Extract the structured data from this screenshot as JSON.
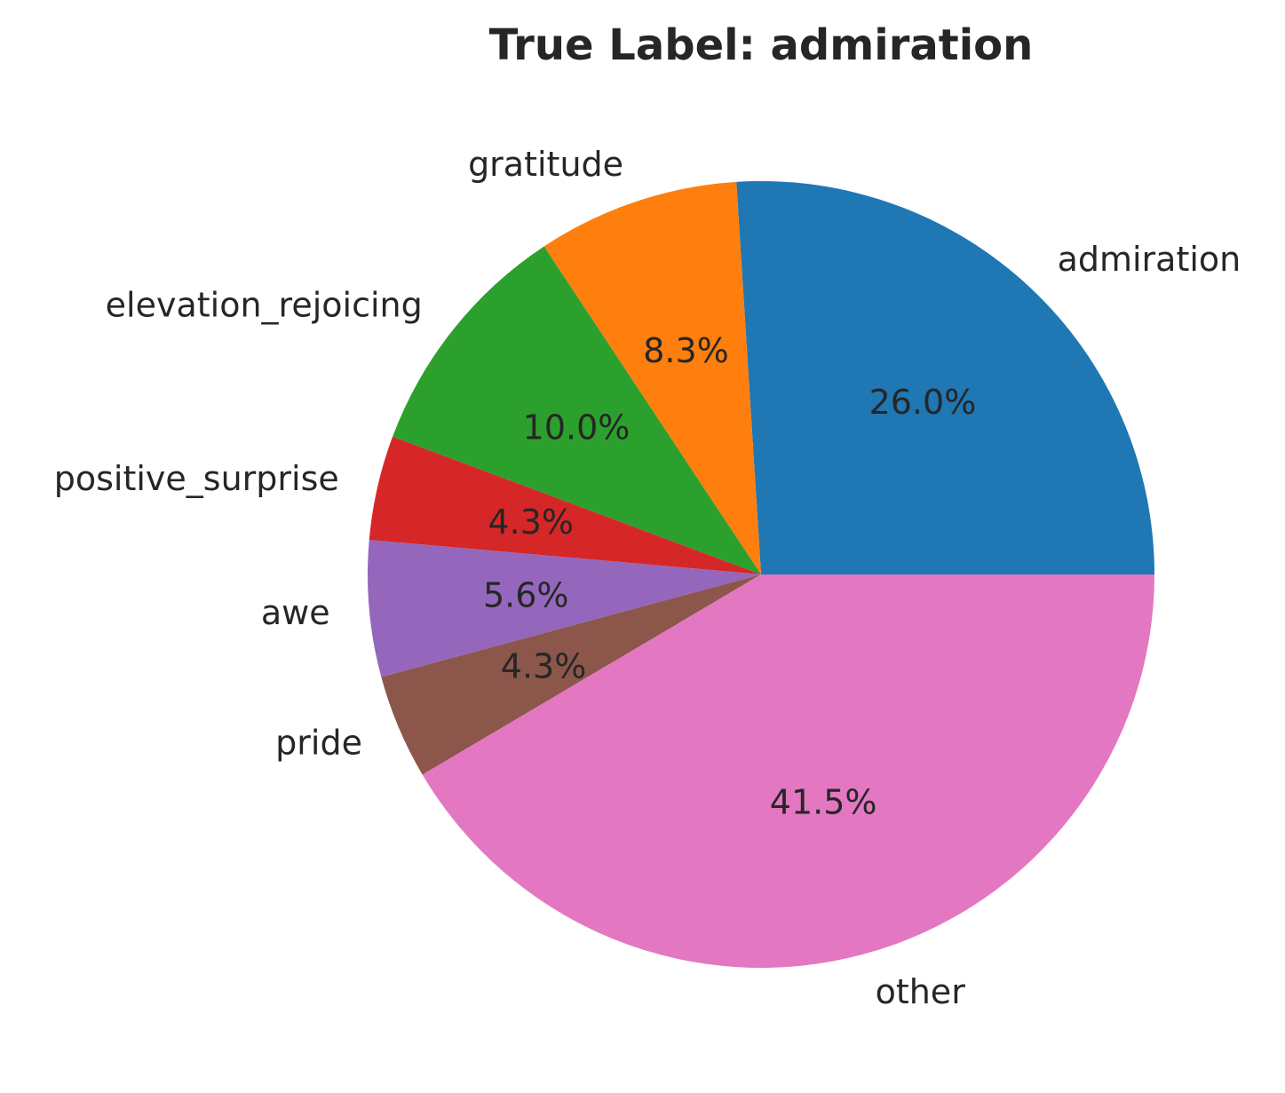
{
  "chart_data": {
    "type": "pie",
    "title": "True Label: admiration",
    "start_angle_deg": 0,
    "direction": "counterclockwise",
    "slices": [
      {
        "label": "admiration",
        "value": 26.0,
        "pct_label": "26.0%",
        "color": "#1f77b4"
      },
      {
        "label": "gratitude",
        "value": 8.3,
        "pct_label": "8.3%",
        "color": "#ff7f0e"
      },
      {
        "label": "elevation_rejoicing",
        "value": 10.0,
        "pct_label": "10.0%",
        "color": "#2ca02c"
      },
      {
        "label": "positive_surprise",
        "value": 4.3,
        "pct_label": "4.3%",
        "color": "#d62728"
      },
      {
        "label": "awe",
        "value": 5.6,
        "pct_label": "5.6%",
        "color": "#9467bd"
      },
      {
        "label": "pride",
        "value": 4.3,
        "pct_label": "4.3%",
        "color": "#8c564b"
      },
      {
        "label": "other",
        "value": 41.5,
        "pct_label": "41.5%",
        "color": "#e377c2"
      }
    ]
  }
}
